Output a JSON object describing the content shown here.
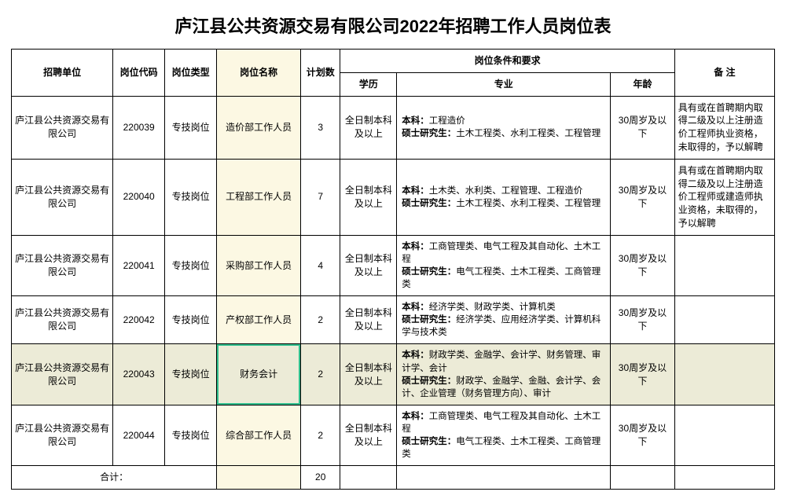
{
  "title": "庐江县公共资源交易有限公司2022年招聘工作人员岗位表",
  "headers": {
    "unit": "招聘单位",
    "code": "岗位代码",
    "type": "岗位类型",
    "name": "岗位名称",
    "plan": "计划数",
    "req_group": "岗位条件和要求",
    "edu": "学历",
    "major": "专业",
    "age": "年龄",
    "remark": "备 注"
  },
  "columns": {
    "widths_pct": [
      13.3,
      6.8,
      6.8,
      11.0,
      5.2,
      7.4,
      28.0,
      8.4,
      13.1
    ]
  },
  "rows": [
    {
      "unit": "庐江县公共资源交易有限公司",
      "code": "220039",
      "type": "专技岗位",
      "name": "造价部工作人员",
      "plan": "3",
      "edu": "全日制本科及以上",
      "major_html": "<b>本科：</b>工程造价<br><b>硕士研究生：</b>土木工程类、水利工程类、工程管理",
      "age": "30周岁及以下",
      "remark": "具有或在首聘期内取得二级及以上注册造价工程师执业资格，未取得的，予以解聘"
    },
    {
      "unit": "庐江县公共资源交易有限公司",
      "code": "220040",
      "type": "专技岗位",
      "name": "工程部工作人员",
      "plan": "7",
      "edu": "全日制本科及以上",
      "major_html": "<b>本科：</b>土木类、水利类、工程管理、工程造价<br><b>硕士研究生：</b>土木工程类、水利工程类、工程管理",
      "age": "30周岁及以下",
      "remark": "具有或在首聘期内取得二级及以上注册造价工程师或建造师执业资格，未取得的，予以解聘"
    },
    {
      "unit": "庐江县公共资源交易有限公司",
      "code": "220041",
      "type": "专技岗位",
      "name": "采购部工作人员",
      "plan": "4",
      "edu": "全日制本科及以上",
      "major_html": "<b>本科：</b>工商管理类、电气工程及其自动化、土木工程<br><b>硕士研究生：</b>电气工程类、土木工程类、工商管理类",
      "age": "30周岁及以下",
      "remark": ""
    },
    {
      "unit": "庐江县公共资源交易有限公司",
      "code": "220042",
      "type": "专技岗位",
      "name": "产权部工作人员",
      "plan": "2",
      "edu": "全日制本科及以上",
      "major_html": "<b>本科：</b>经济学类、财政学类、计算机类<br><b>硕士研究生：</b>经济学类、应用经济学类、计算机科学与技术类",
      "age": "30周岁及以下",
      "remark": ""
    },
    {
      "unit": "庐江县公共资源交易有限公司",
      "code": "220043",
      "type": "专技岗位",
      "name": "财务会计",
      "plan": "2",
      "edu": "全日制本科及以上",
      "major_html": "<b>本科：</b>财政学类、金融学、会计学、财务管理、审计学、会计<br><b>硕士研究生：</b>财政学、金融学、金融、会计学、会计、企业管理（财务管理方向）、审计",
      "age": "30周岁及以下",
      "remark": "",
      "highlight_row": true,
      "selected_cell": "name"
    },
    {
      "unit": "庐江县公共资源交易有限公司",
      "code": "220044",
      "type": "专技岗位",
      "name": "综合部工作人员",
      "plan": "2",
      "edu": "全日制本科及以上",
      "major_html": "<b>本科：</b>工商管理类、电气工程及其自动化、土木工程<br><b>硕士研究生：</b>电气工程类、土木工程类、工商管理类",
      "age": "30周岁及以下",
      "remark": ""
    }
  ],
  "total": {
    "label": "合计：",
    "plan": "20"
  },
  "colors": {
    "col_highlight": "#fcf8e3",
    "row_highlight": "#ecebd7",
    "selected_border": "#2fbf8d"
  }
}
